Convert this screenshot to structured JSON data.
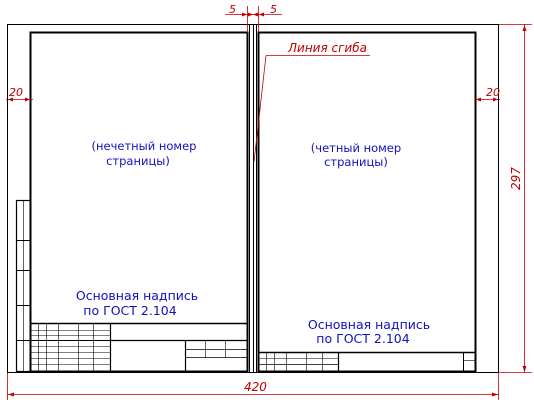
{
  "dimensions": {
    "fold_gap_left": "5",
    "fold_gap_right": "5",
    "margin_left": "20",
    "margin_right": "20",
    "height": "297",
    "width": "420"
  },
  "fold_line_label": "Линия сгиба",
  "left_page": {
    "caption_line1": "(нечетный номер",
    "caption_line2": "страницы)",
    "stamp_line1": "Основная надпись",
    "stamp_line2": "по ГОСТ 2.104"
  },
  "right_page": {
    "caption_line1": "(четный номер",
    "caption_line2": "страницы)",
    "stamp_line1": "Основная надпись",
    "stamp_line2": "по ГОСТ 2.104"
  },
  "colors": {
    "dimension": "#c00000",
    "caption": "#1010c0",
    "frame": "#000000"
  }
}
